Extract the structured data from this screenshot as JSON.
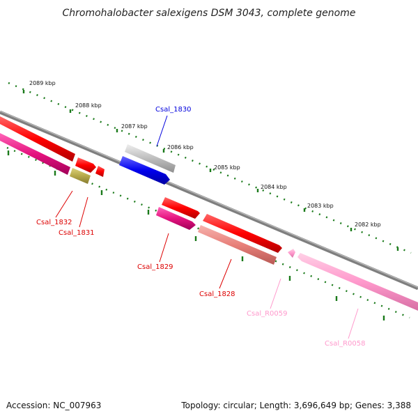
{
  "title": "Chromohalobacter salexigens DSM 3043, complete genome",
  "ticks": [
    "2089 kbp",
    "2088 kbp",
    "2087 kbp",
    "2086 kbp",
    "2085 kbp",
    "2084 kbp",
    "2083 kbp",
    "2082 kbp"
  ],
  "genes": {
    "Csal_1830": "Csal_1830",
    "Csal_1832": "Csal_1832",
    "Csal_1831": "Csal_1831",
    "Csal_1829": "Csal_1829",
    "Csal_1828": "Csal_1828",
    "Csal_R0059": "Csal_R0059",
    "Csal_R0058": "Csal_R0058"
  },
  "footer": {
    "accession": "Accession: NC_007963",
    "summary": "Topology: circular; Length: 3,696,649 bp; Genes: 3,388"
  },
  "colors": {
    "backbone": "#808080",
    "tick": "#1a7a1a",
    "red": "#ff0000",
    "magenta": "#e5137f",
    "olive": "#b5a84a",
    "gray": "#bdbdbd",
    "blue": "#0000ee",
    "salmon": "#e8807a",
    "pink": "#ff99cc"
  }
}
